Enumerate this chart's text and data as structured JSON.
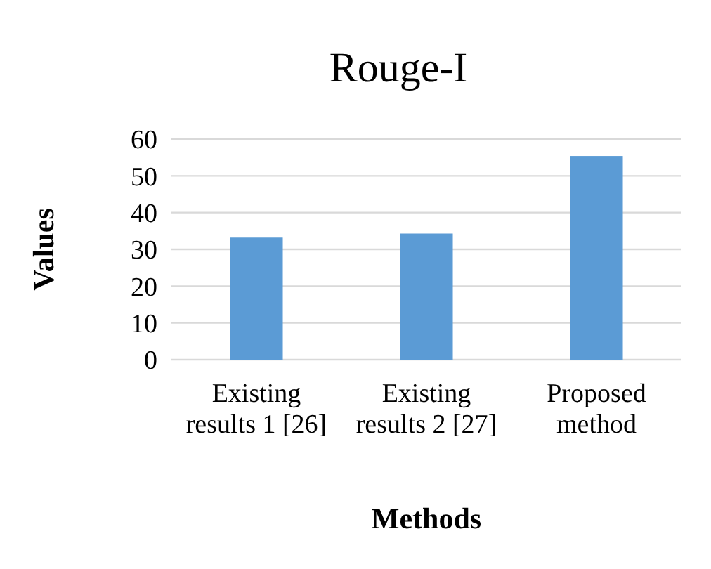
{
  "chart_data": {
    "type": "bar",
    "title": "Rouge-I",
    "xlabel": "Methods",
    "ylabel": "Values",
    "categories": [
      "Existing results 1 [26]",
      "Existing results 2 [27]",
      "Proposed method"
    ],
    "values": [
      33.2,
      34.3,
      55.4
    ],
    "color": "#5b9bd5",
    "ylim": [
      0,
      60
    ],
    "yticks": [
      0,
      10,
      20,
      30,
      40,
      50,
      60
    ],
    "grid": "y"
  }
}
